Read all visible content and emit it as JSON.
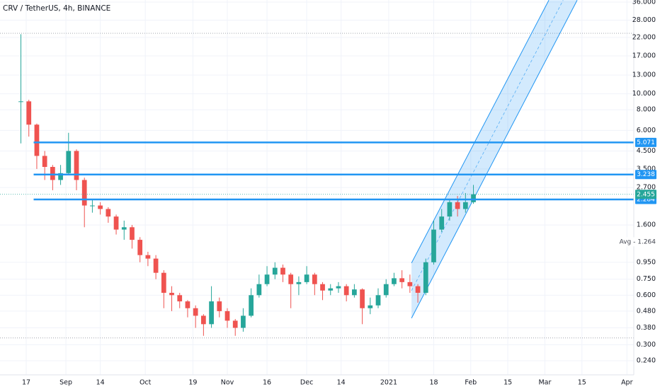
{
  "chart_data": {
    "type": "candlestick",
    "title": "CRV / TetherUS, 4h, BINANCE",
    "log_scale": true,
    "grid": true,
    "up_color": "#26a69a",
    "down_color": "#ef5350",
    "x": [
      -2,
      1,
      4,
      7,
      10,
      13,
      16,
      19,
      22,
      25,
      28,
      31,
      34,
      37,
      40,
      43,
      46,
      49,
      52,
      55,
      58,
      61,
      64,
      67,
      70,
      73,
      76,
      79,
      82,
      85,
      88,
      91,
      94,
      97,
      100,
      103,
      106,
      109,
      112,
      115,
      118,
      121,
      124,
      127,
      130,
      133,
      136,
      139,
      142,
      145,
      148,
      151,
      154,
      157,
      160,
      163,
      166,
      169
    ],
    "close": [
      9.0,
      6.5,
      4.2,
      3.6,
      3.0,
      3.3,
      4.5,
      3.0,
      2.1,
      2.1,
      2.0,
      1.8,
      1.5,
      1.55,
      1.3,
      1.05,
      1.0,
      0.82,
      0.62,
      0.6,
      0.55,
      0.5,
      0.45,
      0.4,
      0.55,
      0.48,
      0.42,
      0.38,
      0.45,
      0.6,
      0.7,
      0.8,
      0.88,
      0.8,
      0.7,
      0.72,
      0.8,
      0.7,
      0.64,
      0.66,
      0.68,
      0.6,
      0.65,
      0.5,
      0.52,
      0.6,
      0.7,
      0.76,
      0.72,
      0.68,
      0.62,
      0.95,
      1.5,
      1.8,
      2.2,
      2.0,
      2.2,
      2.455
    ],
    "high": [
      23,
      9.2,
      6.6,
      4.5,
      3.7,
      3.7,
      5.8,
      4.6,
      3.1,
      2.3,
      2.2,
      2.05,
      1.85,
      1.7,
      1.6,
      1.35,
      1.1,
      1.05,
      0.85,
      0.68,
      0.62,
      0.56,
      0.52,
      0.46,
      0.68,
      0.58,
      0.5,
      0.43,
      0.5,
      0.66,
      0.8,
      0.9,
      0.95,
      0.92,
      0.82,
      0.78,
      0.9,
      0.82,
      0.72,
      0.7,
      0.72,
      0.7,
      0.7,
      0.66,
      0.58,
      0.66,
      0.75,
      0.82,
      0.85,
      0.8,
      0.7,
      1.0,
      1.7,
      2.0,
      2.3,
      2.4,
      2.5,
      2.8
    ],
    "low": [
      5.0,
      5.5,
      3.5,
      3.0,
      2.6,
      2.8,
      3.2,
      2.6,
      1.55,
      1.9,
      1.85,
      1.65,
      1.4,
      1.3,
      1.15,
      0.95,
      0.9,
      0.75,
      0.5,
      0.48,
      0.5,
      0.44,
      0.38,
      0.34,
      0.38,
      0.44,
      0.38,
      0.34,
      0.36,
      0.44,
      0.58,
      0.68,
      0.75,
      0.72,
      0.5,
      0.6,
      0.7,
      0.6,
      0.56,
      0.6,
      0.62,
      0.55,
      0.58,
      0.4,
      0.46,
      0.5,
      0.58,
      0.68,
      0.66,
      0.62,
      0.54,
      0.6,
      0.92,
      1.45,
      1.7,
      1.8,
      1.9,
      2.15
    ],
    "xlim": [
      -9.9,
      229.6
    ],
    "ylim": [
      0.197,
      37.1
    ],
    "xticks": [
      {
        "value": 0,
        "label": "17"
      },
      {
        "value": 15,
        "label": "Sep"
      },
      {
        "value": 28,
        "label": "14"
      },
      {
        "value": 45,
        "label": "Oct"
      },
      {
        "value": 63,
        "label": "19"
      },
      {
        "value": 76,
        "label": "Nov"
      },
      {
        "value": 91,
        "label": "16"
      },
      {
        "value": 106,
        "label": "Dec"
      },
      {
        "value": 119,
        "label": "14"
      },
      {
        "value": 137,
        "label": "2021"
      },
      {
        "value": 154,
        "label": "18"
      },
      {
        "value": 168,
        "label": "Feb"
      },
      {
        "value": 182,
        "label": "15"
      },
      {
        "value": 196,
        "label": "Mar"
      },
      {
        "value": 210,
        "label": "15"
      },
      {
        "value": 227,
        "label": "Apr"
      }
    ],
    "yticks": [
      {
        "value": 36,
        "label": "36.000"
      },
      {
        "value": 28,
        "label": "28.000"
      },
      {
        "value": 22,
        "label": "22.000"
      },
      {
        "value": 17,
        "label": "17.000"
      },
      {
        "value": 13,
        "label": "13.000"
      },
      {
        "value": 10,
        "label": "10.000"
      },
      {
        "value": 8,
        "label": "8.000"
      },
      {
        "value": 6,
        "label": "6.000"
      },
      {
        "value": 4.5,
        "label": "4.500"
      },
      {
        "value": 3.5,
        "label": "3.500"
      },
      {
        "value": 2.7,
        "label": "2.700"
      },
      {
        "value": 1.6,
        "label": "1.600"
      },
      {
        "value": 0.95,
        "label": "0.950"
      },
      {
        "value": 0.75,
        "label": "0.750"
      },
      {
        "value": 0.6,
        "label": "0.600"
      },
      {
        "value": 0.48,
        "label": "0.480"
      },
      {
        "value": 0.38,
        "label": "0.380"
      },
      {
        "value": 0.3,
        "label": "0.300"
      },
      {
        "value": 0.24,
        "label": "0.240"
      }
    ],
    "levels": [
      {
        "value": 5.071,
        "color": "#2196f3"
      },
      {
        "value": 3.238,
        "color": "#2196f3"
      },
      {
        "value": 2.284,
        "color": "#2196f3"
      }
    ],
    "last_price": {
      "value": 2.455,
      "color": "#26a69a"
    },
    "avg": {
      "value": 1.264,
      "label": "Avg - 1.264"
    },
    "range_lines": [
      23.3,
      0.33
    ],
    "channel": {
      "upper": {
        "x": [
          145.6,
          197.5
        ],
        "y": [
          0.94,
          37
        ]
      },
      "middle": {
        "x": [
          145.6,
          202.9
        ],
        "y": [
          0.639,
          37
        ]
      },
      "lower": {
        "x": [
          145.6,
          208.2
        ],
        "y": [
          0.435,
          37
        ]
      }
    }
  }
}
